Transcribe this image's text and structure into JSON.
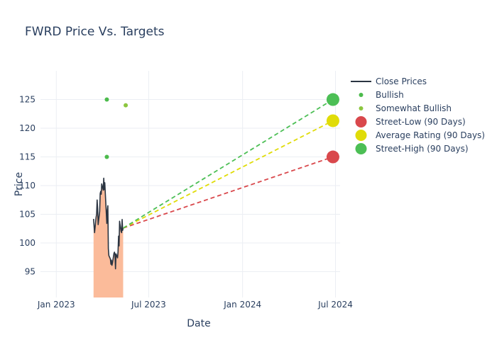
{
  "chart_data": {
    "type": "line",
    "title": "FWRD Price Vs. Targets",
    "xlabel": "Date",
    "ylabel": "Price",
    "xlim": [
      "2022-12-01",
      "2024-07-10"
    ],
    "ylim": [
      90.5,
      130
    ],
    "x_ticks": [
      {
        "date": "2023-01-01",
        "label": "Jan 2023"
      },
      {
        "date": "2023-07-01",
        "label": "Jul 2023"
      },
      {
        "date": "2024-01-01",
        "label": "Jan 2024"
      },
      {
        "date": "2024-07-01",
        "label": "Jul 2024"
      }
    ],
    "y_ticks": [
      95,
      100,
      105,
      110,
      115,
      120,
      125
    ],
    "grid": true,
    "legend_position": "top-right",
    "colors": {
      "close_line": "#2a3441",
      "close_fill": "#fbbb9a",
      "bullish": "#4cbb4c",
      "somewhat_bullish": "#8cc63f",
      "street_low": "#d9484c",
      "average": "#e0dc08",
      "street_high": "#4cbf55",
      "title": "#2a3f5f",
      "grid": "#ebeef3"
    },
    "series": [
      {
        "name": "Close Prices",
        "kind": "line",
        "points": [
          {
            "x": "2023-03-15",
            "y": 104.2
          },
          {
            "x": "2023-03-16",
            "y": 103.0
          },
          {
            "x": "2023-03-17",
            "y": 101.8
          },
          {
            "x": "2023-03-20",
            "y": 104.5
          },
          {
            "x": "2023-03-21",
            "y": 105.0
          },
          {
            "x": "2023-03-22",
            "y": 107.5
          },
          {
            "x": "2023-03-23",
            "y": 106.0
          },
          {
            "x": "2023-03-24",
            "y": 103.2
          },
          {
            "x": "2023-03-27",
            "y": 105.5
          },
          {
            "x": "2023-03-28",
            "y": 108.6
          },
          {
            "x": "2023-03-29",
            "y": 109.0
          },
          {
            "x": "2023-03-30",
            "y": 108.5
          },
          {
            "x": "2023-03-31",
            "y": 110.3
          },
          {
            "x": "2023-04-03",
            "y": 109.2
          },
          {
            "x": "2023-04-04",
            "y": 111.3
          },
          {
            "x": "2023-04-05",
            "y": 109.3
          },
          {
            "x": "2023-04-06",
            "y": 110.5
          },
          {
            "x": "2023-04-10",
            "y": 103.4
          },
          {
            "x": "2023-04-11",
            "y": 105.7
          },
          {
            "x": "2023-04-12",
            "y": 106.5
          },
          {
            "x": "2023-04-13",
            "y": 99.0
          },
          {
            "x": "2023-04-14",
            "y": 97.8
          },
          {
            "x": "2023-04-17",
            "y": 97.2
          },
          {
            "x": "2023-04-18",
            "y": 96.3
          },
          {
            "x": "2023-04-19",
            "y": 97.0
          },
          {
            "x": "2023-04-20",
            "y": 96.1
          },
          {
            "x": "2023-04-21",
            "y": 96.5
          },
          {
            "x": "2023-04-24",
            "y": 98.2
          },
          {
            "x": "2023-04-25",
            "y": 98.4
          },
          {
            "x": "2023-04-26",
            "y": 98.0
          },
          {
            "x": "2023-04-27",
            "y": 95.5
          },
          {
            "x": "2023-04-28",
            "y": 98.1
          },
          {
            "x": "2023-05-01",
            "y": 97.4
          },
          {
            "x": "2023-05-02",
            "y": 98.5
          },
          {
            "x": "2023-05-03",
            "y": 101.2
          },
          {
            "x": "2023-05-04",
            "y": 99.5
          },
          {
            "x": "2023-05-05",
            "y": 103.8
          },
          {
            "x": "2023-05-08",
            "y": 102.0
          },
          {
            "x": "2023-05-09",
            "y": 101.8
          },
          {
            "x": "2023-05-10",
            "y": 104.1
          },
          {
            "x": "2023-05-11",
            "y": 102.2
          },
          {
            "x": "2023-05-12",
            "y": 102.6
          }
        ]
      },
      {
        "name": "Bullish",
        "kind": "markers",
        "points": [
          {
            "x": "2023-04-10",
            "y": 125
          },
          {
            "x": "2023-04-10",
            "y": 115
          }
        ]
      },
      {
        "name": "Somewhat Bullish",
        "kind": "markers",
        "points": [
          {
            "x": "2023-05-17",
            "y": 124
          }
        ]
      },
      {
        "name": "Street-Low (90 Days)",
        "kind": "target",
        "from": {
          "x": "2023-05-12",
          "y": 102.6
        },
        "to": {
          "x": "2024-06-26",
          "y": 115
        }
      },
      {
        "name": "Average Rating (90 Days)",
        "kind": "target",
        "from": {
          "x": "2023-05-12",
          "y": 102.6
        },
        "to": {
          "x": "2024-06-26",
          "y": 121.3
        }
      },
      {
        "name": "Street-High (90 Days)",
        "kind": "target",
        "from": {
          "x": "2023-05-12",
          "y": 102.6
        },
        "to": {
          "x": "2024-06-26",
          "y": 125
        }
      }
    ]
  }
}
